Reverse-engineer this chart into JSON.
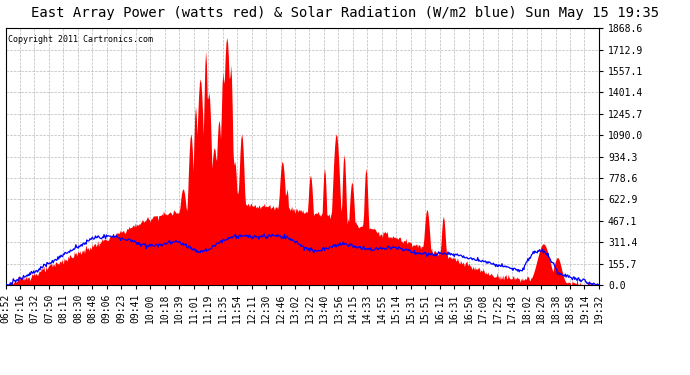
{
  "title": "East Array Power (watts red) & Solar Radiation (W/m2 blue) Sun May 15 19:35",
  "copyright": "Copyright 2011 Cartronics.com",
  "yticks": [
    0.0,
    155.7,
    311.4,
    467.1,
    622.9,
    778.6,
    934.3,
    1090.0,
    1245.7,
    1401.4,
    1557.1,
    1712.9,
    1868.6
  ],
  "ymax": 1868.6,
  "ymin": 0.0,
  "xtick_labels": [
    "06:52",
    "07:16",
    "07:32",
    "07:50",
    "08:11",
    "08:30",
    "08:48",
    "09:06",
    "09:23",
    "09:41",
    "10:00",
    "10:18",
    "10:39",
    "11:01",
    "11:19",
    "11:35",
    "11:54",
    "12:11",
    "12:30",
    "12:46",
    "13:02",
    "13:22",
    "13:40",
    "13:56",
    "14:15",
    "14:33",
    "14:55",
    "15:14",
    "15:31",
    "15:51",
    "16:12",
    "16:31",
    "16:50",
    "17:08",
    "17:25",
    "17:43",
    "18:02",
    "18:20",
    "18:38",
    "18:58",
    "19:14",
    "19:32"
  ],
  "background_color": "#ffffff",
  "plot_bg_color": "#ffffff",
  "grid_color": "#aaaaaa",
  "red_color": "#ff0000",
  "blue_color": "#0000ff",
  "title_fontsize": 10,
  "tick_fontsize": 7.0
}
